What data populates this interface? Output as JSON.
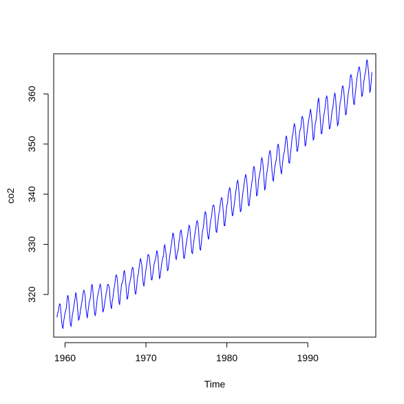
{
  "chart_data": {
    "type": "line",
    "xlabel": "Time",
    "ylabel": "co2",
    "xlim": [
      1958.6,
      1998.4
    ],
    "ylim": [
      311.5,
      368.0
    ],
    "x_ticks": [
      1960,
      1970,
      1980,
      1990
    ],
    "y_ticks": [
      320,
      330,
      340,
      350,
      360
    ],
    "grid": false,
    "legend": "none",
    "series": [
      {
        "colors": {
          "series": "#0000FF",
          "axis": "#000000"
        },
        "start": 1959.0,
        "frequency": 12,
        "values": [
          315.42,
          316.31,
          316.5,
          317.56,
          318.13,
          318.0,
          316.39,
          314.65,
          313.68,
          313.18,
          314.66,
          315.43,
          316.27,
          316.81,
          317.42,
          318.87,
          319.87,
          319.43,
          318.01,
          315.74,
          314.0,
          313.68,
          314.84,
          316.03,
          316.73,
          317.54,
          318.38,
          319.31,
          320.42,
          319.61,
          318.42,
          316.63,
          314.83,
          315.16,
          315.94,
          316.85,
          317.78,
          318.4,
          319.53,
          320.42,
          320.85,
          320.45,
          319.45,
          317.25,
          316.11,
          315.27,
          316.53,
          317.53,
          318.58,
          318.92,
          319.7,
          321.22,
          322.08,
          321.31,
          319.58,
          317.61,
          316.05,
          315.83,
          316.91,
          318.2,
          319.41,
          320.07,
          320.74,
          321.4,
          322.06,
          321.73,
          320.27,
          318.54,
          316.54,
          316.71,
          317.53,
          318.55,
          319.27,
          320.28,
          320.73,
          321.97,
          322.0,
          321.71,
          321.05,
          318.71,
          317.66,
          317.14,
          318.7,
          319.25,
          320.46,
          321.43,
          322.23,
          323.54,
          323.91,
          323.59,
          322.24,
          320.2,
          318.48,
          317.94,
          319.63,
          320.87,
          322.17,
          322.34,
          322.88,
          324.25,
          324.83,
          323.93,
          322.38,
          320.76,
          319.1,
          319.24,
          320.56,
          321.8,
          322.4,
          322.99,
          323.73,
          324.86,
          325.4,
          325.2,
          323.98,
          321.95,
          320.18,
          320.09,
          321.16,
          322.74,
          323.83,
          324.26,
          325.47,
          326.5,
          327.21,
          326.54,
          325.72,
          323.5,
          322.22,
          321.62,
          322.69,
          323.95,
          324.89,
          325.82,
          326.77,
          327.97,
          327.91,
          327.5,
          326.18,
          324.53,
          322.93,
          322.9,
          323.85,
          324.96,
          326.01,
          326.51,
          327.01,
          327.62,
          328.76,
          328.4,
          327.2,
          325.27,
          323.2,
          323.4,
          324.63,
          325.85,
          326.6,
          327.47,
          327.58,
          329.56,
          329.9,
          328.92,
          327.88,
          326.16,
          324.68,
          325.04,
          326.34,
          327.39,
          328.37,
          329.4,
          330.14,
          331.33,
          332.31,
          331.9,
          330.7,
          329.15,
          327.35,
          327.02,
          327.99,
          328.48,
          329.18,
          330.55,
          331.32,
          332.48,
          332.92,
          332.08,
          331.01,
          329.23,
          327.27,
          327.21,
          328.29,
          329.41,
          330.23,
          331.25,
          331.87,
          333.14,
          333.8,
          333.43,
          331.73,
          329.9,
          328.4,
          328.17,
          329.32,
          330.59,
          331.58,
          332.39,
          333.33,
          334.41,
          334.71,
          334.17,
          332.89,
          330.77,
          329.14,
          328.78,
          330.14,
          331.52,
          332.75,
          333.24,
          334.53,
          335.9,
          336.57,
          336.1,
          334.76,
          332.59,
          331.42,
          330.98,
          332.24,
          333.68,
          334.8,
          335.22,
          336.47,
          337.59,
          337.84,
          337.72,
          336.37,
          334.51,
          332.6,
          332.38,
          333.75,
          334.78,
          336.05,
          336.59,
          337.79,
          338.71,
          339.3,
          339.12,
          337.56,
          335.92,
          333.75,
          333.7,
          335.12,
          336.56,
          337.84,
          338.19,
          339.91,
          340.6,
          341.29,
          341.0,
          339.39,
          337.43,
          335.72,
          335.84,
          336.93,
          338.04,
          339.06,
          340.3,
          341.21,
          342.33,
          342.74,
          342.08,
          340.32,
          338.26,
          336.52,
          336.68,
          338.19,
          339.44,
          340.57,
          341.44,
          342.53,
          343.39,
          343.96,
          343.18,
          341.88,
          339.65,
          337.81,
          337.69,
          339.09,
          340.32,
          341.2,
          342.35,
          342.93,
          344.77,
          345.58,
          345.14,
          343.81,
          342.21,
          339.69,
          339.82,
          340.98,
          342.82,
          343.52,
          344.33,
          345.11,
          346.88,
          347.25,
          346.62,
          345.22,
          343.11,
          340.9,
          341.18,
          342.8,
          344.04,
          344.79,
          345.82,
          347.25,
          348.17,
          348.74,
          348.07,
          346.38,
          344.51,
          342.92,
          342.62,
          344.06,
          345.38,
          346.11,
          346.78,
          347.68,
          349.37,
          350.03,
          349.37,
          347.76,
          345.73,
          344.68,
          343.99,
          345.48,
          346.72,
          347.84,
          348.29,
          349.23,
          350.8,
          351.66,
          351.07,
          349.33,
          347.92,
          346.27,
          346.18,
          347.64,
          348.78,
          350.25,
          351.54,
          352.05,
          353.41,
          354.04,
          353.62,
          352.22,
          350.27,
          348.55,
          348.72,
          349.91,
          351.18,
          352.6,
          352.92,
          353.53,
          355.26,
          355.52,
          354.97,
          353.75,
          351.52,
          349.64,
          349.83,
          351.14,
          352.37,
          353.5,
          354.55,
          355.23,
          356.04,
          357.0,
          356.07,
          354.67,
          352.76,
          350.82,
          351.04,
          352.69,
          354.07,
          354.59,
          355.63,
          357.03,
          358.48,
          359.22,
          358.12,
          356.06,
          353.92,
          352.05,
          352.11,
          353.64,
          354.89,
          355.88,
          356.63,
          357.72,
          359.07,
          359.58,
          359.17,
          356.94,
          354.92,
          352.94,
          353.23,
          354.09,
          355.33,
          356.63,
          357.1,
          358.32,
          359.41,
          360.23,
          359.55,
          357.53,
          355.48,
          353.67,
          353.95,
          355.3,
          356.78,
          358.34,
          358.89,
          359.95,
          361.25,
          361.67,
          360.94,
          359.55,
          357.49,
          355.84,
          356.0,
          357.59,
          359.05,
          359.98,
          361.03,
          361.66,
          363.48,
          363.82,
          363.3,
          361.94,
          359.5,
          358.11,
          357.8,
          359.61,
          360.74,
          362.09,
          363.29,
          364.06,
          364.76,
          365.45,
          365.01,
          363.7,
          361.54,
          359.51,
          359.65,
          360.8,
          362.38,
          363.23,
          364.06,
          364.61,
          366.4,
          366.84,
          365.68,
          364.52,
          362.57,
          360.24,
          360.83,
          362.49,
          364.34
        ]
      }
    ]
  }
}
